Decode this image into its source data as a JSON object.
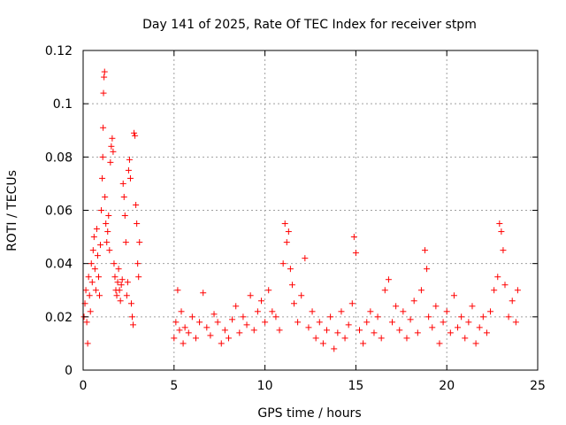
{
  "chart_data": {
    "type": "scatter",
    "title": "Day 141 of 2025, Rate Of TEC Index for receiver stpm",
    "xlabel": "GPS time / hours",
    "ylabel": "ROTI / TECUs",
    "xlim": [
      0,
      25
    ],
    "ylim": [
      0,
      0.12
    ],
    "x_ticks": [
      0,
      5,
      10,
      15,
      20,
      25
    ],
    "x_tick_labels": [
      "0",
      "5",
      "10",
      "15",
      "20",
      "25"
    ],
    "y_ticks": [
      0,
      0.02,
      0.04,
      0.06,
      0.08,
      0.1,
      0.12
    ],
    "y_tick_labels": [
      "0",
      "0.02",
      "0.04",
      "0.06",
      "0.08",
      "0.1",
      "0.12"
    ],
    "grid": true,
    "marker": "plus",
    "series": [
      {
        "name": "ROTI",
        "color": "#ff0000",
        "points": [
          [
            0.05,
            0.02
          ],
          [
            0.1,
            0.025
          ],
          [
            0.15,
            0.03
          ],
          [
            0.2,
            0.018
          ],
          [
            0.25,
            0.01
          ],
          [
            0.3,
            0.035
          ],
          [
            0.35,
            0.028
          ],
          [
            0.4,
            0.022
          ],
          [
            0.45,
            0.04
          ],
          [
            0.5,
            0.033
          ],
          [
            0.55,
            0.045
          ],
          [
            0.6,
            0.05
          ],
          [
            0.65,
            0.038
          ],
          [
            0.7,
            0.03
          ],
          [
            0.75,
            0.053
          ],
          [
            0.8,
            0.043
          ],
          [
            0.85,
            0.035
          ],
          [
            0.9,
            0.028
          ],
          [
            0.95,
            0.047
          ],
          [
            1.0,
            0.06
          ],
          [
            1.05,
            0.072
          ],
          [
            1.08,
            0.08
          ],
          [
            1.1,
            0.091
          ],
          [
            1.12,
            0.104
          ],
          [
            1.15,
            0.11
          ],
          [
            1.18,
            0.112
          ],
          [
            1.2,
            0.065
          ],
          [
            1.25,
            0.055
          ],
          [
            1.3,
            0.048
          ],
          [
            1.35,
            0.052
          ],
          [
            1.4,
            0.058
          ],
          [
            1.45,
            0.045
          ],
          [
            1.5,
            0.078
          ],
          [
            1.55,
            0.084
          ],
          [
            1.6,
            0.087
          ],
          [
            1.65,
            0.082
          ],
          [
            1.7,
            0.04
          ],
          [
            1.75,
            0.035
          ],
          [
            1.8,
            0.03
          ],
          [
            1.85,
            0.028
          ],
          [
            1.9,
            0.033
          ],
          [
            1.95,
            0.038
          ],
          [
            2.0,
            0.03
          ],
          [
            2.05,
            0.026
          ],
          [
            2.1,
            0.032
          ],
          [
            2.15,
            0.034
          ],
          [
            2.2,
            0.07
          ],
          [
            2.25,
            0.065
          ],
          [
            2.3,
            0.058
          ],
          [
            2.35,
            0.048
          ],
          [
            2.4,
            0.028
          ],
          [
            2.45,
            0.033
          ],
          [
            2.5,
            0.075
          ],
          [
            2.55,
            0.079
          ],
          [
            2.6,
            0.072
          ],
          [
            2.65,
            0.025
          ],
          [
            2.7,
            0.02
          ],
          [
            2.75,
            0.017
          ],
          [
            2.8,
            0.089
          ],
          [
            2.85,
            0.088
          ],
          [
            2.9,
            0.062
          ],
          [
            2.95,
            0.055
          ],
          [
            3.0,
            0.04
          ],
          [
            3.05,
            0.035
          ],
          [
            3.1,
            0.048
          ],
          [
            5.0,
            0.012
          ],
          [
            5.1,
            0.018
          ],
          [
            5.2,
            0.03
          ],
          [
            5.3,
            0.015
          ],
          [
            5.4,
            0.022
          ],
          [
            5.5,
            0.01
          ],
          [
            5.6,
            0.016
          ],
          [
            5.8,
            0.014
          ],
          [
            6.0,
            0.02
          ],
          [
            6.2,
            0.012
          ],
          [
            6.4,
            0.018
          ],
          [
            6.6,
            0.029
          ],
          [
            6.8,
            0.016
          ],
          [
            7.0,
            0.013
          ],
          [
            7.2,
            0.021
          ],
          [
            7.4,
            0.018
          ],
          [
            7.6,
            0.01
          ],
          [
            7.8,
            0.015
          ],
          [
            8.0,
            0.012
          ],
          [
            8.2,
            0.019
          ],
          [
            8.4,
            0.024
          ],
          [
            8.6,
            0.014
          ],
          [
            8.8,
            0.02
          ],
          [
            9.0,
            0.017
          ],
          [
            9.2,
            0.028
          ],
          [
            9.4,
            0.015
          ],
          [
            9.6,
            0.022
          ],
          [
            9.8,
            0.026
          ],
          [
            10.0,
            0.018
          ],
          [
            10.2,
            0.03
          ],
          [
            10.4,
            0.022
          ],
          [
            10.6,
            0.02
          ],
          [
            10.8,
            0.015
          ],
          [
            11.0,
            0.04
          ],
          [
            11.1,
            0.055
          ],
          [
            11.2,
            0.048
          ],
          [
            11.3,
            0.052
          ],
          [
            11.4,
            0.038
          ],
          [
            11.5,
            0.032
          ],
          [
            11.6,
            0.025
          ],
          [
            11.8,
            0.018
          ],
          [
            12.0,
            0.028
          ],
          [
            12.2,
            0.042
          ],
          [
            12.4,
            0.016
          ],
          [
            12.6,
            0.022
          ],
          [
            12.8,
            0.012
          ],
          [
            13.0,
            0.018
          ],
          [
            13.2,
            0.01
          ],
          [
            13.4,
            0.015
          ],
          [
            13.6,
            0.02
          ],
          [
            13.8,
            0.008
          ],
          [
            14.0,
            0.014
          ],
          [
            14.2,
            0.022
          ],
          [
            14.4,
            0.012
          ],
          [
            14.6,
            0.017
          ],
          [
            14.8,
            0.025
          ],
          [
            14.9,
            0.05
          ],
          [
            15.0,
            0.044
          ],
          [
            15.2,
            0.015
          ],
          [
            15.4,
            0.01
          ],
          [
            15.6,
            0.018
          ],
          [
            15.8,
            0.022
          ],
          [
            16.0,
            0.014
          ],
          [
            16.2,
            0.02
          ],
          [
            16.4,
            0.012
          ],
          [
            16.6,
            0.03
          ],
          [
            16.8,
            0.034
          ],
          [
            17.0,
            0.018
          ],
          [
            17.2,
            0.024
          ],
          [
            17.4,
            0.015
          ],
          [
            17.6,
            0.022
          ],
          [
            17.8,
            0.012
          ],
          [
            18.0,
            0.019
          ],
          [
            18.2,
            0.026
          ],
          [
            18.4,
            0.014
          ],
          [
            18.6,
            0.03
          ],
          [
            18.8,
            0.045
          ],
          [
            18.9,
            0.038
          ],
          [
            19.0,
            0.02
          ],
          [
            19.2,
            0.016
          ],
          [
            19.4,
            0.024
          ],
          [
            19.6,
            0.01
          ],
          [
            19.8,
            0.018
          ],
          [
            20.0,
            0.022
          ],
          [
            20.2,
            0.014
          ],
          [
            20.4,
            0.028
          ],
          [
            20.6,
            0.016
          ],
          [
            20.8,
            0.02
          ],
          [
            21.0,
            0.012
          ],
          [
            21.2,
            0.018
          ],
          [
            21.4,
            0.024
          ],
          [
            21.6,
            0.01
          ],
          [
            21.8,
            0.016
          ],
          [
            22.0,
            0.02
          ],
          [
            22.2,
            0.014
          ],
          [
            22.4,
            0.022
          ],
          [
            22.6,
            0.03
          ],
          [
            22.8,
            0.035
          ],
          [
            22.9,
            0.055
          ],
          [
            23.0,
            0.052
          ],
          [
            23.1,
            0.045
          ],
          [
            23.2,
            0.032
          ],
          [
            23.4,
            0.02
          ],
          [
            23.6,
            0.026
          ],
          [
            23.8,
            0.018
          ],
          [
            23.9,
            0.03
          ]
        ]
      }
    ]
  }
}
